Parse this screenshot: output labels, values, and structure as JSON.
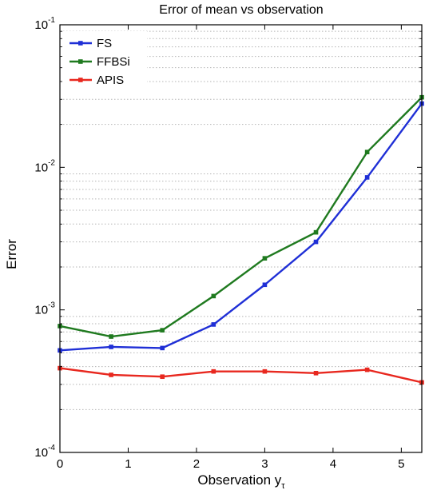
{
  "chart_data": {
    "type": "line",
    "title": "Error of mean vs observation",
    "xlabel": "Observation y",
    "xlabel_subscript": "τ",
    "ylabel": "Error",
    "yscale": "log",
    "xlim": [
      0,
      5.3
    ],
    "ylim": [
      0.0001,
      0.1
    ],
    "x_ticks": [
      0,
      1,
      2,
      3,
      4,
      5
    ],
    "x_tick_labels": [
      "0",
      "1",
      "2",
      "3",
      "4",
      "5"
    ],
    "y_ticks": [
      {
        "value": 0.0001,
        "base": "10",
        "exp": "-4"
      },
      {
        "value": 0.001,
        "base": "10",
        "exp": "-3"
      },
      {
        "value": 0.01,
        "base": "10",
        "exp": "-2"
      },
      {
        "value": 0.1,
        "base": "10",
        "exp": "-1"
      }
    ],
    "grid": "y-minor-dotted",
    "legend_position": "top-left",
    "x": [
      0,
      0.75,
      1.5,
      2.25,
      3,
      3.75,
      4.5,
      5.3
    ],
    "series": [
      {
        "name": "FS",
        "color": "#1f2fd6",
        "values": [
          0.00052,
          0.00055,
          0.00054,
          0.00079,
          0.0015,
          0.003,
          0.0085,
          0.028
        ]
      },
      {
        "name": "FFBSi",
        "color": "#1f7a1f",
        "values": [
          0.00077,
          0.00065,
          0.00072,
          0.00125,
          0.0023,
          0.0035,
          0.0128,
          0.031
        ]
      },
      {
        "name": "APIS",
        "color": "#e8281f",
        "values": [
          0.00039,
          0.00035,
          0.00034,
          0.00037,
          0.00037,
          0.00036,
          0.00038,
          0.00031
        ]
      }
    ]
  }
}
